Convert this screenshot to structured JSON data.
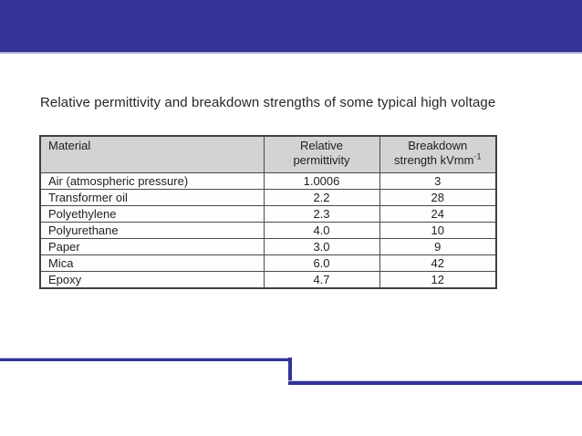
{
  "slide": {
    "title": "Relative permittivity and breakdown strengths of some typical high voltage"
  },
  "colors": {
    "header_bar": "#333295",
    "header_bar_edge": "#b5b8dc",
    "accent_line": "#32329b",
    "accent_line_light": "#c0c3e3",
    "table_header_bg": "#d3d3d3",
    "table_border": "#4a4a4a",
    "text": "#262626"
  },
  "table": {
    "headers": [
      {
        "line1": "Material",
        "line2": ""
      },
      {
        "line1": "Relative",
        "line2": "permittivity"
      },
      {
        "line1": "Breakdown",
        "line2": "strength kVmm",
        "superscript": "-1"
      }
    ],
    "rows": [
      {
        "material": "Air (atmospheric pressure)",
        "relative_permittivity": "1.0006",
        "breakdown_strength": "3"
      },
      {
        "material": "Transformer oil",
        "relative_permittivity": "2.2",
        "breakdown_strength": "28"
      },
      {
        "material": "Polyethylene",
        "relative_permittivity": "2.3",
        "breakdown_strength": "24"
      },
      {
        "material": "Polyurethane",
        "relative_permittivity": "4.0",
        "breakdown_strength": "10"
      },
      {
        "material": "Paper",
        "relative_permittivity": "3.0",
        "breakdown_strength": "9"
      },
      {
        "material": "Mica",
        "relative_permittivity": "6.0",
        "breakdown_strength": "42"
      },
      {
        "material": "Epoxy",
        "relative_permittivity": "4.7",
        "breakdown_strength": "12"
      }
    ]
  }
}
